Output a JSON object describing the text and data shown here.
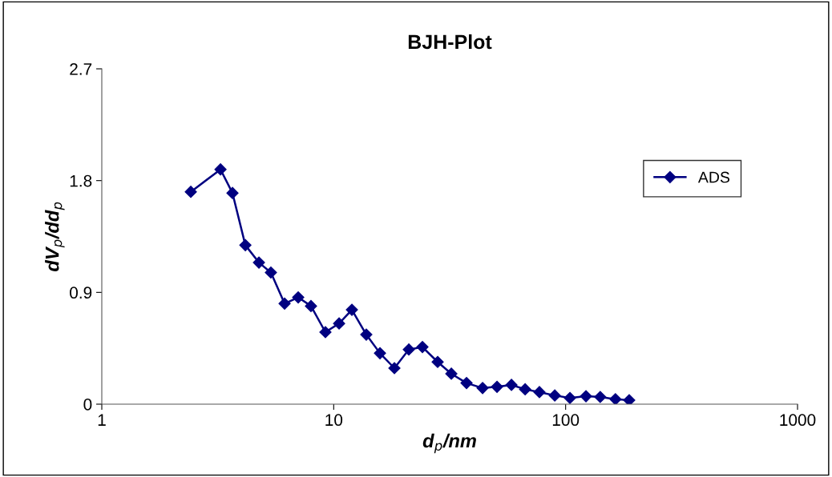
{
  "chart_data": {
    "type": "line",
    "title": "BJH-Plot",
    "xlabel": "d$_{p}$/nm",
    "ylabel": "dV$_{p}$/dd$_{p}$",
    "log": "x",
    "xlim": [
      1,
      1000
    ],
    "xticks": [
      1,
      10,
      100,
      1000
    ],
    "ylim": [
      0,
      2.7
    ],
    "yticks": [
      0,
      0.9,
      1.8,
      2.7
    ],
    "grid": false,
    "legend": "top right",
    "marker": "diamond",
    "line_style": "solid",
    "series": [
      {
        "name": "ADS",
        "color": "#000080",
        "x": [
          2.42,
          3.25,
          3.66,
          4.16,
          4.76,
          5.36,
          6.14,
          7.03,
          7.98,
          9.21,
          10.55,
          11.98,
          13.82,
          15.83,
          18.27,
          21.08,
          24.13,
          28.07,
          32.15,
          37.39,
          43.85,
          50.6,
          58.4,
          66.9,
          77.1,
          89.8,
          104.4,
          122.4,
          141,
          164,
          188
        ],
        "values": [
          1.71,
          1.89,
          1.7,
          1.28,
          1.14,
          1.06,
          0.81,
          0.86,
          0.79,
          0.58,
          0.65,
          0.76,
          0.56,
          0.41,
          0.29,
          0.44,
          0.46,
          0.34,
          0.245,
          0.17,
          0.13,
          0.14,
          0.155,
          0.12,
          0.097,
          0.07,
          0.05,
          0.064,
          0.058,
          0.04,
          0.032
        ]
      }
    ]
  }
}
